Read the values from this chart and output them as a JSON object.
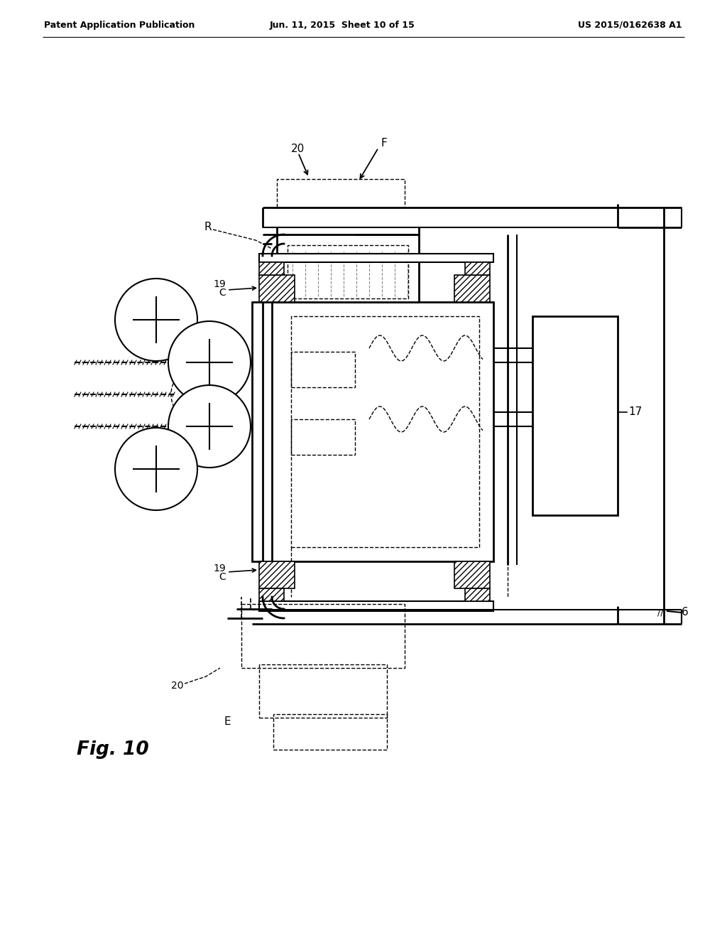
{
  "bg_color": "#ffffff",
  "header_left": "Patent Application Publication",
  "header_mid": "Jun. 11, 2015  Sheet 10 of 15",
  "header_right": "US 2015/0162638 A1",
  "fig_label": "Fig. 10"
}
